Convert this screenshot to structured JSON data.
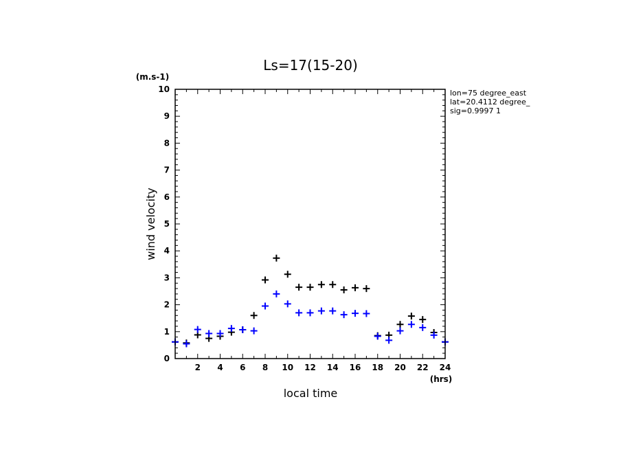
{
  "chart_data": {
    "type": "scatter",
    "title": "Ls=17(15-20)",
    "xlabel": "local time",
    "ylabel": "wind velocity",
    "x_unit": "(hrs)",
    "y_unit": "(m.s-1)",
    "xlim": [
      0,
      24
    ],
    "ylim": [
      0,
      10
    ],
    "x_ticks": [
      "2",
      "4",
      "6",
      "8",
      "10",
      "12",
      "14",
      "16",
      "18",
      "20",
      "22",
      "24"
    ],
    "y_ticks": [
      "0",
      "1",
      "2",
      "3",
      "4",
      "5",
      "6",
      "7",
      "8",
      "9",
      "10"
    ],
    "grid": false,
    "marker": "+",
    "annotations": [
      "lon=75 degree_east",
      "lat=20.4112 degree_",
      "sig=0.9997 1"
    ],
    "series": [
      {
        "color": "#000000",
        "x": [
          0,
          1,
          2,
          3,
          4,
          5,
          6,
          7,
          8,
          9,
          10,
          11,
          12,
          13,
          14,
          15,
          16,
          17,
          18,
          19,
          20,
          21,
          22,
          23,
          24
        ],
        "y": [
          0.62,
          0.58,
          0.88,
          0.75,
          0.83,
          0.98,
          1.07,
          1.6,
          2.92,
          3.73,
          3.13,
          2.65,
          2.65,
          2.75,
          2.75,
          2.55,
          2.63,
          2.6,
          0.85,
          0.87,
          1.27,
          1.58,
          1.45,
          0.97,
          0.62
        ]
      },
      {
        "color": "#0000ff",
        "x": [
          0,
          1,
          2,
          3,
          4,
          5,
          6,
          7,
          8,
          9,
          10,
          11,
          12,
          13,
          14,
          15,
          16,
          17,
          18,
          19,
          20,
          21,
          22,
          23,
          24
        ],
        "y": [
          0.62,
          0.55,
          1.08,
          0.93,
          0.93,
          1.12,
          1.07,
          1.03,
          1.95,
          2.4,
          2.03,
          1.7,
          1.7,
          1.77,
          1.77,
          1.63,
          1.68,
          1.67,
          0.83,
          0.68,
          1.03,
          1.27,
          1.15,
          0.87,
          0.62
        ]
      }
    ]
  }
}
